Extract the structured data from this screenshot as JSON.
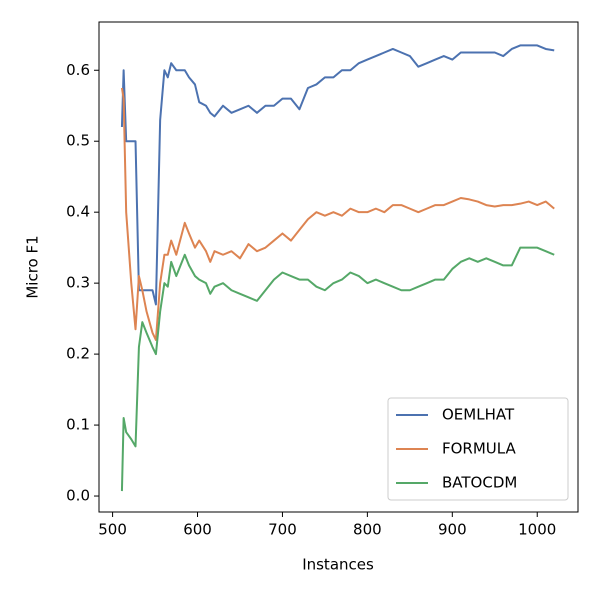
{
  "chart_data": {
    "type": "line",
    "xlabel": "Instances",
    "ylabel": "Micro F1",
    "x": [
      511,
      513,
      516,
      522,
      527,
      531,
      535,
      540,
      547,
      551,
      556,
      561,
      565,
      569,
      575,
      585,
      590,
      597,
      602,
      610,
      615,
      620,
      630,
      640,
      650,
      660,
      670,
      680,
      690,
      700,
      710,
      720,
      730,
      740,
      750,
      760,
      770,
      780,
      790,
      800,
      810,
      820,
      830,
      840,
      850,
      860,
      870,
      880,
      890,
      900,
      910,
      920,
      930,
      940,
      950,
      960,
      970,
      980,
      990,
      1000,
      1010,
      1020
    ],
    "series": [
      {
        "name": "OEMLHAT",
        "color": "#4c72b0",
        "values": [
          0.52,
          0.6,
          0.5,
          0.5,
          0.5,
          0.29,
          0.29,
          0.29,
          0.29,
          0.27,
          0.53,
          0.6,
          0.59,
          0.61,
          0.6,
          0.6,
          0.59,
          0.58,
          0.555,
          0.55,
          0.54,
          0.535,
          0.55,
          0.54,
          0.545,
          0.55,
          0.54,
          0.55,
          0.55,
          0.56,
          0.56,
          0.545,
          0.575,
          0.58,
          0.59,
          0.59,
          0.6,
          0.6,
          0.61,
          0.615,
          0.62,
          0.625,
          0.63,
          0.625,
          0.62,
          0.605,
          0.61,
          0.615,
          0.62,
          0.615,
          0.625,
          0.625,
          0.625,
          0.625,
          0.625,
          0.62,
          0.63,
          0.635,
          0.635,
          0.635,
          0.63,
          0.628
        ]
      },
      {
        "name": "FORMULA",
        "color": "#dd8452",
        "values": [
          0.575,
          0.56,
          0.4,
          0.3,
          0.235,
          0.31,
          0.29,
          0.26,
          0.23,
          0.22,
          0.3,
          0.34,
          0.34,
          0.36,
          0.34,
          0.385,
          0.37,
          0.35,
          0.36,
          0.345,
          0.33,
          0.345,
          0.34,
          0.345,
          0.335,
          0.355,
          0.345,
          0.35,
          0.36,
          0.37,
          0.36,
          0.375,
          0.39,
          0.4,
          0.395,
          0.4,
          0.395,
          0.405,
          0.4,
          0.4,
          0.405,
          0.4,
          0.41,
          0.41,
          0.405,
          0.4,
          0.405,
          0.41,
          0.41,
          0.415,
          0.42,
          0.418,
          0.415,
          0.41,
          0.408,
          0.41,
          0.41,
          0.412,
          0.415,
          0.41,
          0.415,
          0.405
        ]
      },
      {
        "name": "BATOCDM",
        "color": "#55a868",
        "values": [
          0.007,
          0.11,
          0.09,
          0.08,
          0.07,
          0.21,
          0.245,
          0.23,
          0.21,
          0.2,
          0.26,
          0.3,
          0.295,
          0.33,
          0.31,
          0.34,
          0.325,
          0.31,
          0.305,
          0.3,
          0.285,
          0.295,
          0.3,
          0.29,
          0.285,
          0.28,
          0.275,
          0.29,
          0.305,
          0.315,
          0.31,
          0.305,
          0.305,
          0.295,
          0.29,
          0.3,
          0.305,
          0.315,
          0.31,
          0.3,
          0.305,
          0.3,
          0.295,
          0.29,
          0.29,
          0.295,
          0.3,
          0.305,
          0.305,
          0.32,
          0.33,
          0.335,
          0.33,
          0.335,
          0.33,
          0.325,
          0.325,
          0.35,
          0.35,
          0.35,
          0.345,
          0.34
        ]
      }
    ],
    "xlim": [
      484,
      1048
    ],
    "xticks": [
      500,
      600,
      700,
      800,
      900,
      1000
    ],
    "ylim": [
      -0.0225,
      0.668
    ],
    "yticks": [
      {
        "value": 0,
        "label": "0.0"
      },
      0.1,
      0.2,
      0.3,
      0.4,
      0.5,
      0.6
    ],
    "grid": false,
    "legend": "lower right"
  }
}
